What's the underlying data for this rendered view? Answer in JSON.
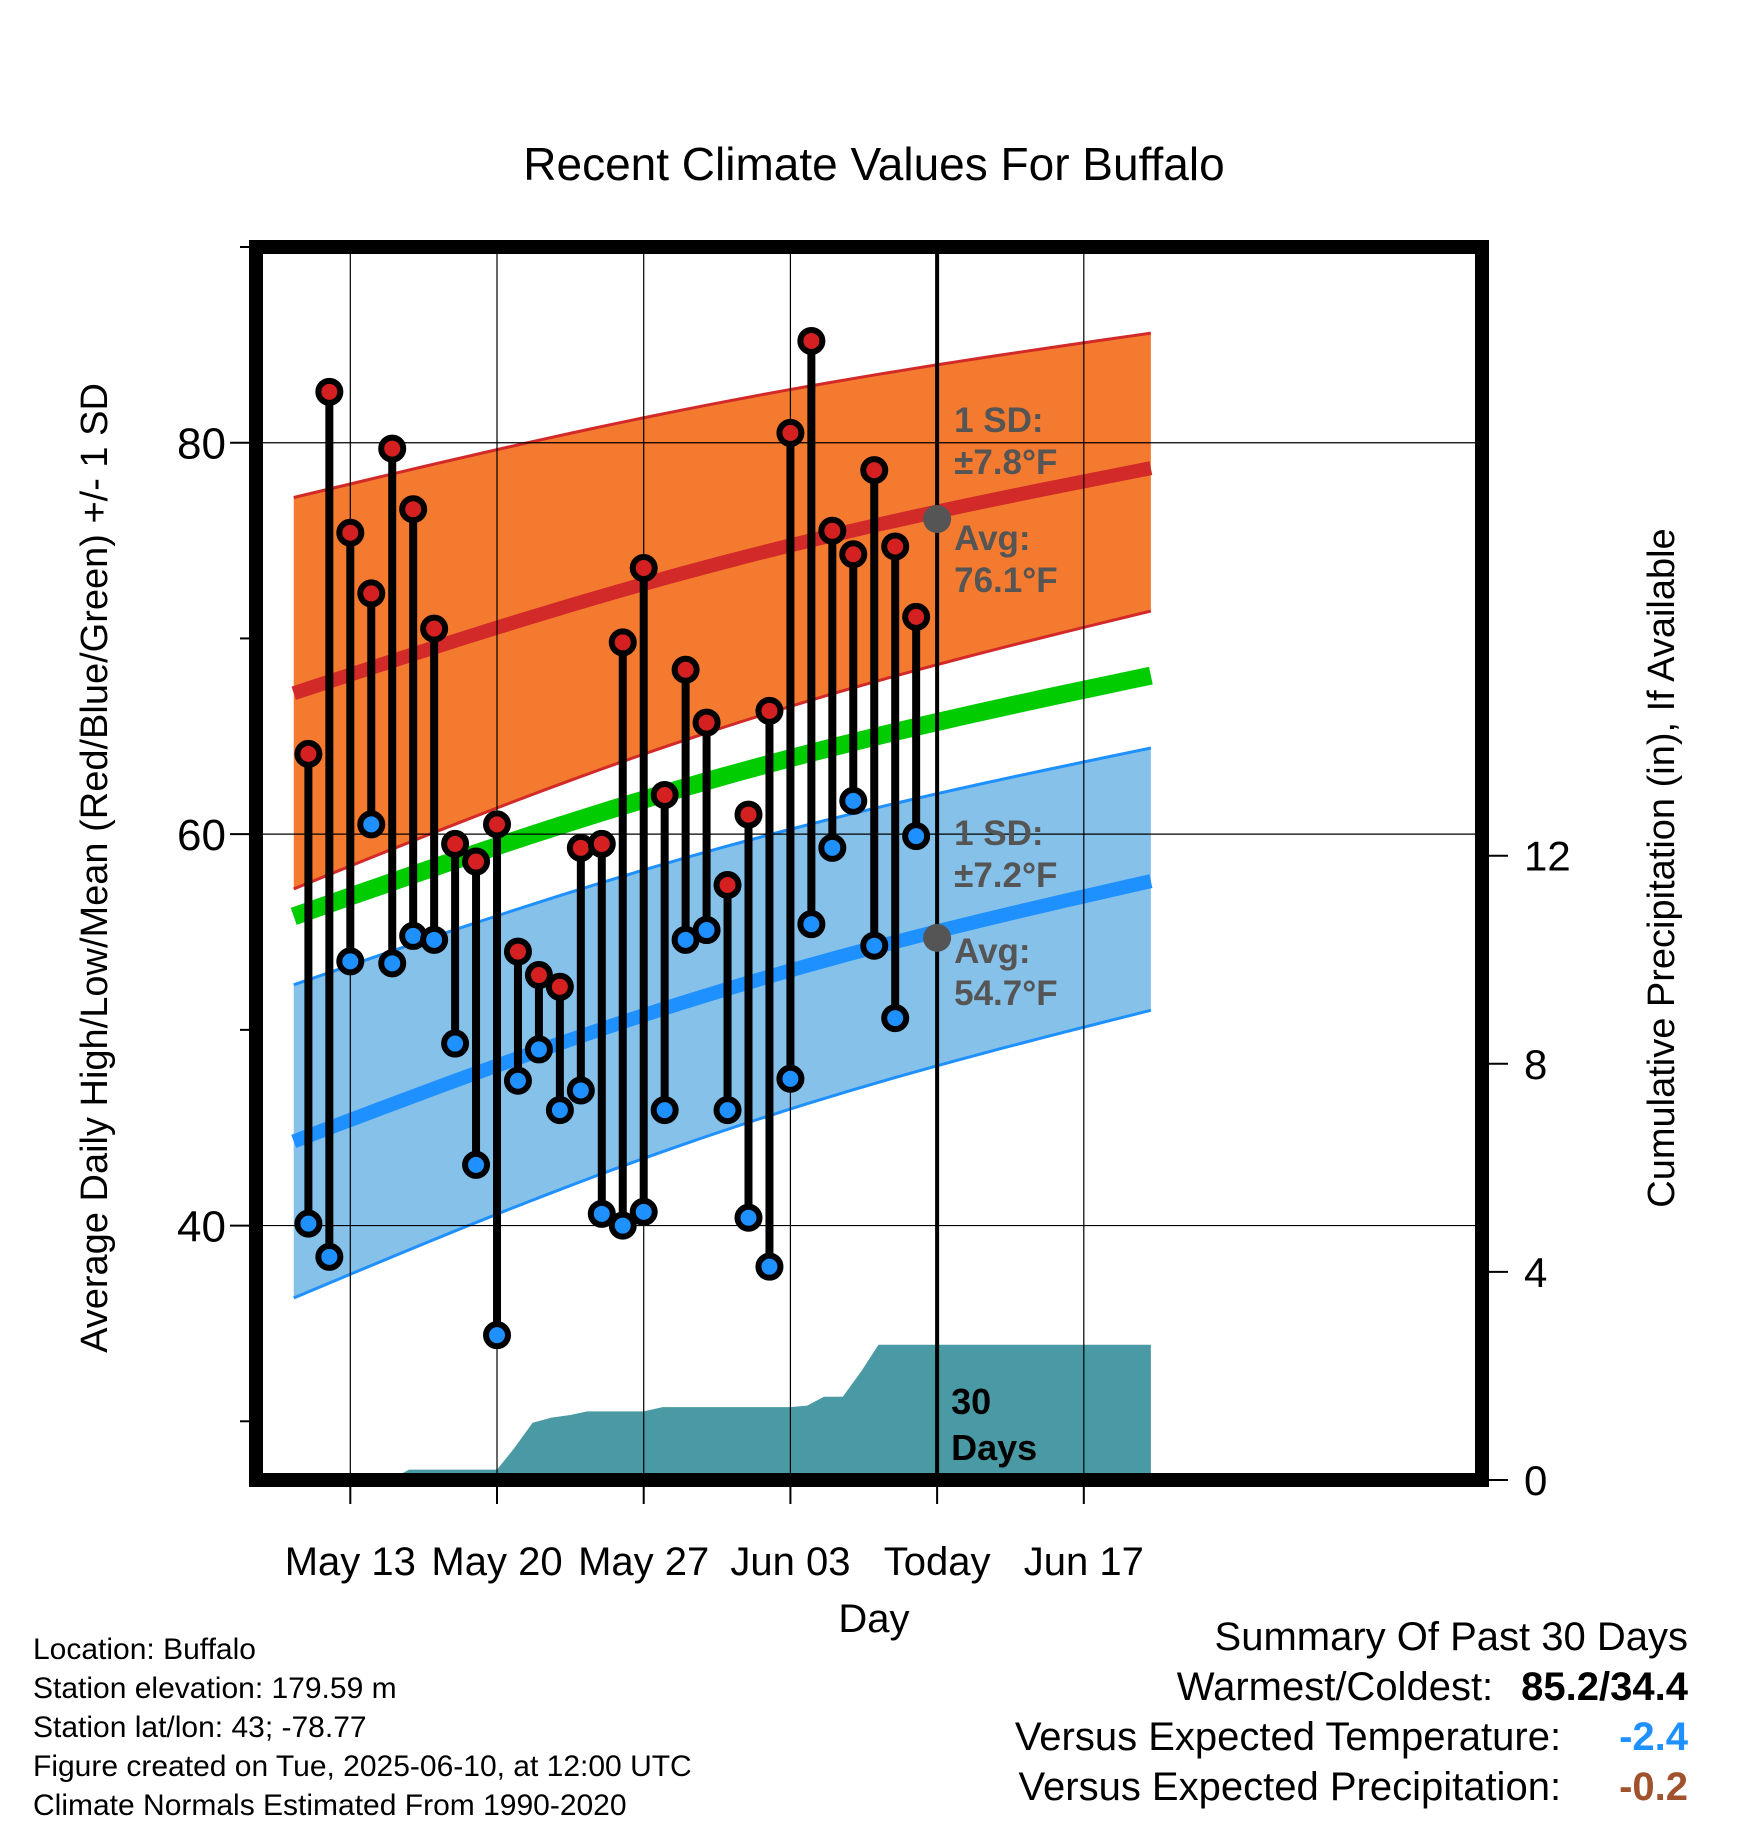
{
  "chart_data": {
    "type": "line",
    "title": "Recent Climate Values For Buffalo",
    "xlabel": "Day",
    "ylabel": "Average Daily High/Low/Mean (Red/Blue/Green) +/- 1 SD",
    "y2label": "Cumulative Precipitation (in), If Available",
    "ylim": [
      27,
      90
    ],
    "y2lim": [
      0,
      23.7
    ],
    "xlim": [
      -4.5,
      54
    ],
    "x_ticks": [
      {
        "x": 0,
        "label": "May 13"
      },
      {
        "x": 7,
        "label": "May 20"
      },
      {
        "x": 14,
        "label": "May 27"
      },
      {
        "x": 21,
        "label": "Jun 03"
      },
      {
        "x": 28,
        "label": "Today"
      },
      {
        "x": 35,
        "label": "Jun 17"
      }
    ],
    "y_ticks": [
      40,
      60,
      80
    ],
    "y_minor_ticks": [
      30,
      50,
      70,
      90
    ],
    "y2_ticks": [
      0,
      4,
      8,
      12
    ],
    "grid": true,
    "normals": {
      "x": [
        -2.7,
        38.2
      ],
      "high_avg": [
        67.2,
        78.7
      ],
      "high_sd_upper": [
        77.2,
        85.6
      ],
      "high_sd_lower": [
        57.2,
        71.4
      ],
      "low_avg": [
        44.3,
        57.6
      ],
      "low_sd_upper": [
        52.3,
        64.4
      ],
      "low_sd_lower": [
        36.3,
        51.0
      ],
      "mean_avg": [
        55.8,
        68.1
      ]
    },
    "today_annotations": {
      "high": {
        "sd_label": "1 SD:",
        "sd_value": "±7.8°F",
        "avg_label": "Avg:",
        "avg_value": "76.1°F",
        "avg": 76.1
      },
      "low": {
        "sd_label": "1 SD:",
        "sd_value": "±7.2°F",
        "avg_label": "Avg:",
        "avg_value": "54.7°F",
        "avg": 54.7
      },
      "window_label": [
        "30",
        "Days"
      ]
    },
    "daily": {
      "x": [
        -2,
        -1,
        0,
        1,
        2,
        3,
        4,
        5,
        6,
        7,
        8,
        9,
        10,
        11,
        12,
        13,
        14,
        15,
        16,
        17,
        18,
        19,
        20,
        21,
        22,
        23,
        24,
        25,
        26,
        27
      ],
      "high": [
        64.1,
        82.6,
        75.4,
        72.3,
        79.7,
        76.6,
        70.5,
        59.5,
        58.6,
        60.5,
        54.0,
        52.8,
        52.2,
        59.3,
        59.5,
        69.8,
        73.6,
        62.0,
        68.4,
        65.7,
        57.4,
        61.0,
        66.3,
        80.5,
        85.2,
        75.5,
        74.3,
        78.6,
        74.7,
        71.1
      ],
      "low": [
        40.1,
        38.4,
        53.5,
        60.5,
        53.4,
        54.8,
        54.6,
        49.3,
        43.1,
        34.4,
        47.4,
        49.0,
        45.9,
        46.9,
        40.6,
        40.0,
        40.7,
        45.9,
        54.6,
        55.1,
        45.9,
        40.4,
        37.9,
        47.5,
        55.4,
        59.3,
        61.7,
        54.3,
        50.6,
        59.9
      ]
    },
    "precip_cumulative": {
      "x": [
        -4.5,
        1.9,
        2.8,
        7.0,
        7.8,
        8.7,
        9.6,
        10.5,
        11.3,
        12.2,
        13.0,
        14.0,
        14.9,
        15.7,
        16.5,
        17.4,
        18.3,
        19.2,
        20.0,
        21.0,
        21.8,
        22.6,
        23.5,
        24.4,
        25.2,
        26.1,
        26.9,
        27.0,
        38.2
      ],
      "values": [
        0,
        0,
        0.2,
        0.2,
        0.6,
        1.1,
        1.2,
        1.25,
        1.32,
        1.32,
        1.32,
        1.32,
        1.4,
        1.4,
        1.4,
        1.4,
        1.4,
        1.4,
        1.4,
        1.4,
        1.43,
        1.6,
        1.6,
        2.1,
        2.6,
        2.6,
        2.6,
        2.6,
        2.6
      ]
    },
    "colors": {
      "high_band": "#f47a2f",
      "high_line": "#d22a28",
      "low_band": "#85c1e9",
      "low_line": "#1e90ff",
      "mean_line": "#00cc00",
      "precip": "#4a9aa5",
      "annotation": "#555555",
      "high_dot": "#d42020",
      "low_dot": "#1e90ff"
    }
  },
  "info": {
    "location": "Location: Buffalo",
    "elevation": "Station elevation: 179.59 m",
    "latlon": "Station lat/lon: 43; -78.77",
    "created": "Figure created on Tue, 2025-06-10, at 12:00 UTC",
    "normals": "Climate Normals Estimated From 1990-2020"
  },
  "summary": {
    "title": "Summary Of Past 30 Days",
    "warm_cold_label": "Warmest/Coldest:",
    "warm_cold_value": "85.2/34.4",
    "temp_label": "Versus Expected Temperature:",
    "temp_value": "-2.4",
    "temp_color": "#1e90ff",
    "precip_label": "Versus Expected Precipitation:",
    "precip_value": "-0.2",
    "precip_color": "#a0522d"
  }
}
